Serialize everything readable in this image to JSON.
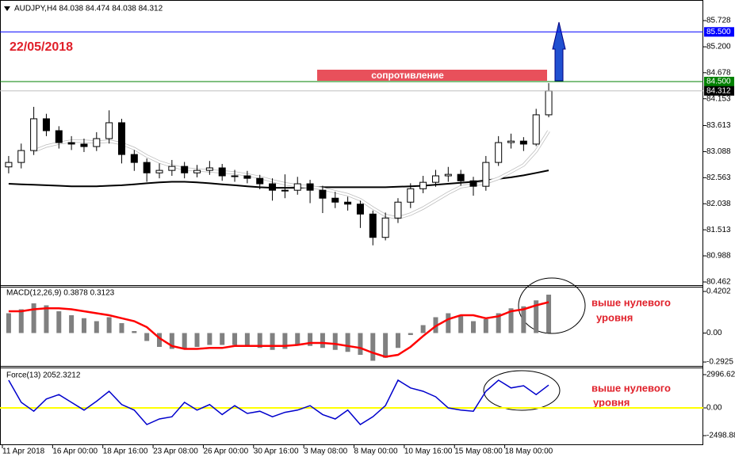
{
  "chart_data": [
    {
      "type": "candlestick",
      "title": "AUDJPY,H4  84.038 84.474 84.038 84.312",
      "date_label": "22/05/2018",
      "annotation": "сопротивление",
      "categories": [
        "11 Apr 2018",
        null,
        null,
        null,
        "16 Apr 00:00",
        null,
        null,
        null,
        "18 Apr 16:00",
        null,
        null,
        null,
        "23 Apr 08:00",
        null,
        null,
        null,
        "26 Apr 00:00",
        null,
        null,
        null,
        "30 Apr 16:00",
        null,
        null,
        null,
        "3 May 08:00",
        null,
        null,
        null,
        "8 May 00:00",
        null,
        null,
        null,
        "10 May 16:00",
        null,
        null,
        null,
        "15 May 08:00",
        null,
        null,
        null,
        "18 May 00:00",
        null,
        null,
        null
      ],
      "open": [
        82.78,
        82.87,
        83.11,
        83.75,
        83.51,
        83.27,
        83.24,
        83.19,
        83.35,
        83.67,
        83.03,
        82.87,
        82.66,
        82.71,
        82.79,
        82.66,
        82.71,
        82.76,
        82.6,
        82.6,
        82.55,
        82.44,
        82.31,
        82.31,
        82.44,
        82.31,
        82.15,
        82.07,
        82.03,
        81.83,
        81.36,
        81.75,
        82.07,
        82.34,
        82.47,
        82.6,
        82.63,
        82.5,
        82.39,
        82.87,
        83.27,
        83.3,
        83.24,
        83.83
      ],
      "high": [
        83.0,
        83.25,
        83.99,
        83.85,
        83.6,
        83.4,
        83.35,
        83.48,
        83.92,
        83.75,
        83.12,
        82.95,
        82.85,
        82.92,
        82.88,
        82.82,
        82.9,
        82.84,
        82.72,
        82.7,
        82.62,
        82.55,
        82.63,
        82.58,
        82.52,
        82.4,
        82.28,
        82.18,
        82.1,
        81.9,
        81.86,
        82.15,
        82.45,
        82.6,
        82.72,
        82.78,
        82.72,
        82.58,
        83.0,
        83.4,
        83.45,
        83.38,
        83.95,
        84.47
      ],
      "low": [
        82.65,
        82.75,
        83.02,
        83.4,
        83.15,
        83.12,
        83.08,
        83.1,
        83.25,
        82.85,
        82.7,
        82.48,
        82.55,
        82.6,
        82.55,
        82.57,
        82.62,
        82.5,
        82.48,
        82.45,
        82.33,
        82.1,
        82.15,
        82.22,
        82.05,
        81.85,
        81.95,
        81.9,
        81.55,
        81.2,
        81.3,
        81.65,
        81.95,
        82.25,
        82.38,
        82.48,
        82.4,
        82.2,
        82.3,
        82.8,
        83.15,
        83.1,
        83.2,
        83.78
      ],
      "close": [
        82.87,
        83.11,
        83.75,
        83.51,
        83.27,
        83.24,
        83.19,
        83.35,
        83.67,
        83.03,
        82.87,
        82.66,
        82.71,
        82.79,
        82.66,
        82.71,
        82.76,
        82.6,
        82.6,
        82.55,
        82.44,
        82.31,
        82.31,
        82.44,
        82.31,
        82.15,
        82.07,
        82.03,
        81.83,
        81.36,
        81.75,
        82.07,
        82.34,
        82.47,
        82.6,
        82.63,
        82.5,
        82.39,
        82.87,
        83.27,
        83.3,
        83.24,
        83.83,
        84.312
      ],
      "ma_lines": [
        {
          "color": "#000000",
          "values": [
            82.44,
            82.43,
            82.42,
            82.41,
            82.4,
            82.39,
            82.39,
            82.39,
            82.4,
            82.41,
            82.43,
            82.45,
            82.47,
            82.48,
            82.48,
            82.47,
            82.45,
            82.43,
            82.41,
            82.39,
            82.37,
            82.36,
            82.36,
            82.36,
            82.37,
            82.37,
            82.37,
            82.37,
            82.37,
            82.37,
            82.37,
            82.38,
            82.39,
            82.4,
            82.42,
            82.44,
            82.46,
            82.48,
            82.51,
            82.54,
            82.57,
            82.61,
            82.66,
            82.71
          ]
        },
        {
          "color": "#ffffff",
          "values": [
            null,
            null,
            83.1,
            83.2,
            83.26,
            83.3,
            83.3,
            83.28,
            83.3,
            83.25,
            83.15,
            83.0,
            82.88,
            82.8,
            82.74,
            82.72,
            82.7,
            82.68,
            82.66,
            82.62,
            82.57,
            82.5,
            82.44,
            82.4,
            82.38,
            82.34,
            82.28,
            82.22,
            82.12,
            81.95,
            81.8,
            81.75,
            81.83,
            81.95,
            82.1,
            82.25,
            82.38,
            82.42,
            82.46,
            82.55,
            82.68,
            82.82,
            83.1,
            83.5
          ]
        }
      ],
      "levels": [
        {
          "value": 85.5,
          "label": "85.500",
          "color": "#0000ff"
        },
        {
          "value": 84.5,
          "label": "84.500",
          "color": "#008000"
        },
        {
          "value": 84.312,
          "label": "84.312",
          "color": "#000000"
        }
      ],
      "ylim": [
        80.398,
        86.143
      ],
      "yticks": [
        85.728,
        {
          "value": 85.2,
          "label": "85.200"
        },
        84.678,
        84.153,
        83.613,
        83.088,
        82.563,
        82.038,
        81.513,
        80.988,
        80.462
      ]
    },
    {
      "type": "macd",
      "title": "MACD(12,26,9) 0.3878 0.3123",
      "annotation": [
        "выше нулевого",
        "уровня"
      ],
      "histogram": {
        "color": "#808080",
        "values": [
          0.2,
          0.24,
          0.3,
          0.28,
          0.22,
          0.18,
          0.15,
          0.12,
          0.16,
          0.1,
          0.02,
          -0.08,
          -0.14,
          -0.16,
          -0.16,
          -0.14,
          -0.12,
          -0.12,
          -0.12,
          -0.13,
          -0.15,
          -0.17,
          -0.16,
          -0.12,
          -0.13,
          -0.15,
          -0.17,
          -0.19,
          -0.22,
          -0.28,
          -0.25,
          -0.15,
          -0.02,
          0.08,
          0.16,
          0.2,
          0.18,
          0.12,
          0.14,
          0.2,
          0.25,
          0.27,
          0.33,
          0.3878
        ]
      },
      "signal": {
        "color": "#ff0000",
        "values": [
          0.22,
          0.22,
          0.24,
          0.25,
          0.25,
          0.24,
          0.22,
          0.2,
          0.18,
          0.15,
          0.12,
          0.06,
          -0.05,
          -0.13,
          -0.16,
          -0.16,
          -0.15,
          -0.15,
          -0.13,
          -0.13,
          -0.13,
          -0.13,
          -0.13,
          -0.12,
          -0.1,
          -0.1,
          -0.11,
          -0.13,
          -0.15,
          -0.2,
          -0.24,
          -0.22,
          -0.14,
          -0.03,
          0.07,
          0.14,
          0.18,
          0.18,
          0.15,
          0.17,
          0.22,
          0.24,
          0.28,
          0.3123
        ]
      },
      "ylim": [
        -0.332,
        0.468
      ],
      "yticks": [
        0.4202,
        {
          "value": 0,
          "label": "0.00"
        },
        -0.2925
      ]
    },
    {
      "type": "line",
      "title": "Force(13) 2052.3212",
      "annotation": [
        "выше нулевого",
        "уровня"
      ],
      "color": "#0000cc",
      "zero_line_color": "#ffff00",
      "values": [
        2500,
        500,
        -300,
        800,
        1200,
        500,
        -200,
        600,
        1500,
        300,
        -200,
        -1500,
        -1000,
        -800,
        500,
        -200,
        300,
        -600,
        200,
        -500,
        -300,
        -800,
        -400,
        -200,
        200,
        -600,
        -1000,
        -200,
        -1500,
        -800,
        200,
        2500,
        1800,
        1500,
        1000,
        0,
        -200,
        -300,
        1500,
        2500,
        1800,
        2000,
        1200,
        2052.3212
      ],
      "ylim": [
        -3354,
        3639
      ],
      "yticks": [
        2996.628,
        {
          "value": 0,
          "label": "0.00"
        },
        -2498.88
      ]
    }
  ]
}
